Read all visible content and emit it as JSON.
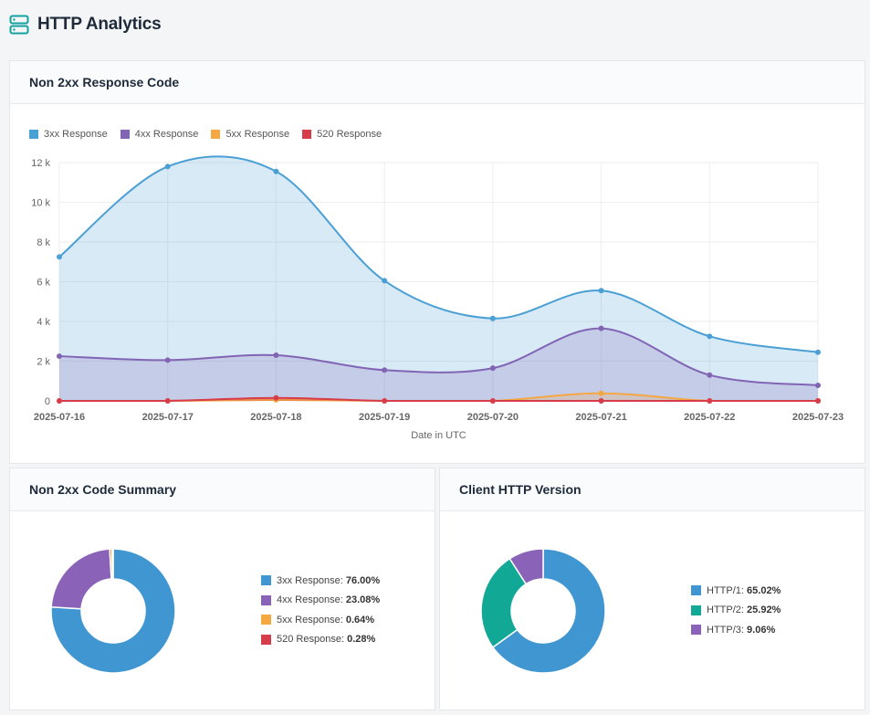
{
  "page": {
    "title": "HTTP Analytics",
    "icon": "server-icon"
  },
  "response_chart": {
    "title": "Non 2xx Response Code",
    "chart_data": {
      "type": "area",
      "x": [
        "2025-07-16",
        "2025-07-17",
        "2025-07-18",
        "2025-07-19",
        "2025-07-20",
        "2025-07-21",
        "2025-07-22",
        "2025-07-23"
      ],
      "xlabel": "Date in UTC",
      "ylabel": "",
      "ylim": [
        0,
        12000
      ],
      "yticks": [
        0,
        2000,
        4000,
        6000,
        8000,
        10000,
        12000
      ],
      "ytick_labels": [
        "0",
        "2 k",
        "4 k",
        "6 k",
        "8 k",
        "10 k",
        "12 k"
      ],
      "grid": true,
      "legend": "top-left",
      "series": [
        {
          "name": "3xx Response",
          "color": "#4a9fd5",
          "values": [
            7250,
            11800,
            11550,
            6050,
            4150,
            5550,
            3250,
            2450
          ]
        },
        {
          "name": "4xx Response",
          "color": "#8264b4",
          "values": [
            2250,
            2050,
            2300,
            1550,
            1650,
            3650,
            1300,
            780
          ]
        },
        {
          "name": "5xx Response",
          "color": "#f5a742",
          "values": [
            0,
            0,
            50,
            0,
            0,
            380,
            0,
            0
          ]
        },
        {
          "name": "520 Response",
          "color": "#d63c4a",
          "values": [
            0,
            0,
            150,
            0,
            0,
            0,
            0,
            0
          ]
        }
      ]
    }
  },
  "summary_chart": {
    "title": "Non 2xx Code Summary",
    "chart_data": {
      "type": "pie",
      "categories": [
        "3xx Response",
        "4xx Response",
        "5xx Response",
        "520 Response"
      ],
      "values": [
        76.0,
        23.08,
        0.64,
        0.28
      ],
      "value_labels": [
        "76.00%",
        "23.08%",
        "0.64%",
        "0.28%"
      ],
      "colors": [
        "#3f96d1",
        "#8a63b8",
        "#f5a742",
        "#d63c4a"
      ],
      "legend": "right"
    }
  },
  "http_chart": {
    "title": "Client HTTP Version",
    "chart_data": {
      "type": "pie",
      "categories": [
        "HTTP/1",
        "HTTP/2",
        "HTTP/3"
      ],
      "values": [
        65.02,
        25.92,
        9.06
      ],
      "value_labels": [
        "65.02%",
        "25.92%",
        "9.06%"
      ],
      "colors": [
        "#3f96d1",
        "#12a896",
        "#8a63b8"
      ],
      "legend": "right"
    }
  }
}
